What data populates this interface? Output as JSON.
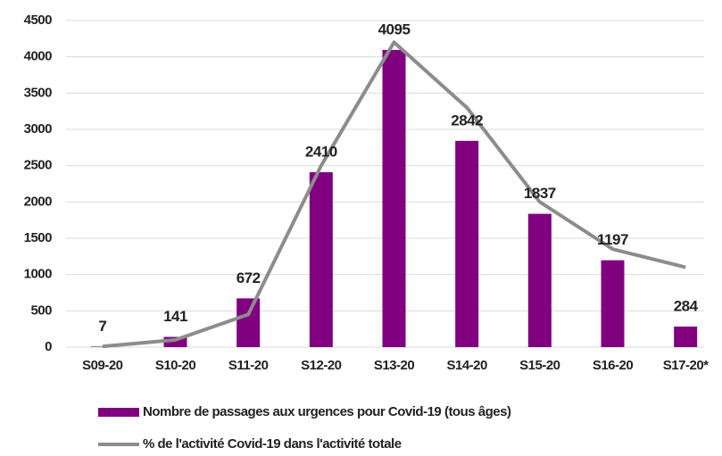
{
  "chart_data": {
    "type": "bar",
    "categories": [
      "S09-20",
      "S10-20",
      "S11-20",
      "S12-20",
      "S13-20",
      "S14-20",
      "S15-20",
      "S16-20",
      "S17-20*"
    ],
    "series": [
      {
        "name": "Nombre de passages aux urgences pour Covid-19 (tous âges)",
        "type": "bar",
        "color": "#800080",
        "values": [
          7,
          141,
          672,
          2410,
          4095,
          2842,
          1837,
          1197,
          284
        ]
      },
      {
        "name": "% de l'activité Covid-19 dans l'activité totale",
        "type": "line",
        "color": "#8c8c8c",
        "values": [
          10,
          100,
          450,
          2500,
          4200,
          3300,
          2000,
          1350,
          1100
        ]
      }
    ],
    "ylim": [
      0,
      4500
    ],
    "yticks": [
      0,
      500,
      1000,
      1500,
      2000,
      2500,
      3000,
      3500,
      4000,
      4500
    ],
    "grid": true
  }
}
